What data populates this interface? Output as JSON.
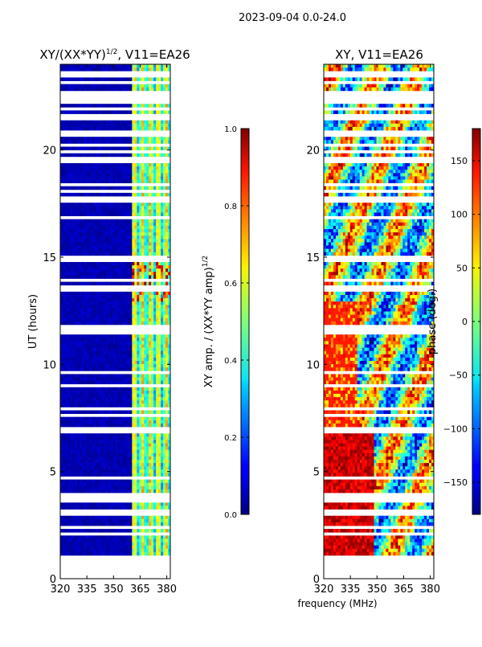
{
  "chart_data": {
    "type": "heatmap",
    "suptitle": "2023-09-04 0.0-24.0",
    "xlabel": "frequency (MHz)",
    "panels": [
      {
        "title_main": "XY/(XX*YY)",
        "title_sup": "1/2",
        "title_rest": ", V11=EA26",
        "ylabel": "UT (hours)",
        "xlim": [
          320,
          382
        ],
        "ylim": [
          0,
          24
        ],
        "xticks": [
          "320",
          "335",
          "350",
          "365",
          "380"
        ],
        "yticks": [
          "0",
          "5",
          "10",
          "15",
          "20"
        ],
        "colorbar": {
          "label_main": "XY amp. / (XX*YY amp)",
          "label_sup": "1/2",
          "vmin": 0.0,
          "vmax": 1.0,
          "ticks": [
            "0.0",
            "0.2",
            "0.4",
            "0.6",
            "0.8",
            "1.0"
          ],
          "tick_values": [
            0.0,
            0.2,
            0.4,
            0.6,
            0.8,
            1.0
          ]
        }
      },
      {
        "title_main": "XY, V11=EA26",
        "ylabel": "",
        "xlim": [
          320,
          382
        ],
        "ylim": [
          0,
          24
        ],
        "xticks": [
          "320",
          "335",
          "350",
          "365",
          "380"
        ],
        "yticks": [
          "0",
          "5",
          "10",
          "15",
          "20"
        ],
        "colorbar": {
          "label_main": "phase (deg.)",
          "vmin": -180,
          "vmax": 180,
          "ticks": [
            "−150",
            "−100",
            "−50",
            "0",
            "50",
            "100",
            "150"
          ],
          "tick_values": [
            -150,
            -100,
            -50,
            0,
            50,
            100,
            150
          ]
        }
      }
    ]
  }
}
